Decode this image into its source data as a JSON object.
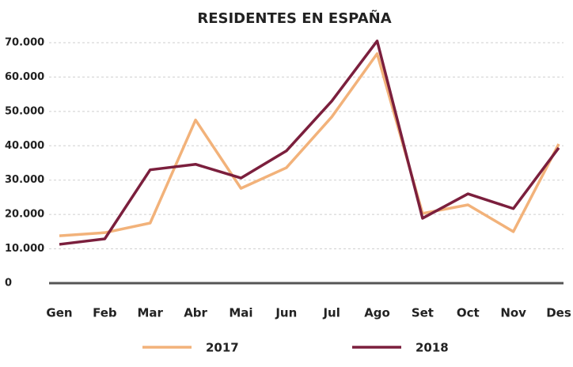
{
  "chart_data": {
    "type": "line",
    "title": "RESIDENTES EN  ESPAÑA",
    "categories": [
      "Gen",
      "Feb",
      "Mar",
      "Abr",
      "Mai",
      "Jun",
      "Jul",
      "Ago",
      "Set",
      "Oct",
      "Nov",
      "Des"
    ],
    "series": [
      {
        "name": "2017",
        "color": "#f2b27a",
        "values": [
          13800,
          14700,
          17500,
          47500,
          27600,
          33600,
          48400,
          66800,
          20300,
          22800,
          15000,
          40500
        ]
      },
      {
        "name": "2018",
        "color": "#7b1f3d",
        "values": [
          11300,
          12900,
          33000,
          34600,
          30600,
          38500,
          53000,
          70500,
          18900,
          26000,
          21700,
          39400
        ]
      }
    ],
    "ylim": [
      0,
      70000
    ],
    "yticks": [
      0,
      {
        "value": 10000,
        "label": "10.000"
      },
      {
        "value": 20000,
        "label": "20.000"
      },
      {
        "value": 30000,
        "label": "30.000"
      },
      {
        "value": 40000,
        "label": "40.000"
      },
      {
        "value": 50000,
        "label": "50.000"
      },
      {
        "value": 60000,
        "label": "60.000"
      },
      {
        "value": 70000,
        "label": "70.000"
      }
    ],
    "grid": true,
    "legend": "bottom"
  }
}
